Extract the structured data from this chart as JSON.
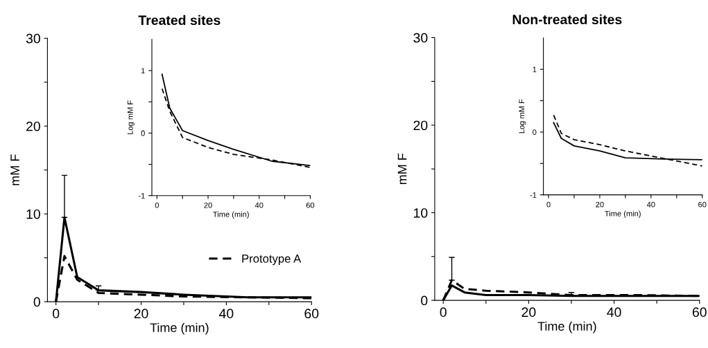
{
  "chart_data": [
    {
      "type": "line",
      "title": "Treated sites",
      "xlabel": "Time (min)",
      "ylabel": "mM F",
      "x": [
        0,
        2,
        5,
        10,
        20,
        30,
        45,
        60
      ],
      "xlim": [
        -2,
        60
      ],
      "xticks": [
        0,
        {
          "value": 10,
          "label": null
        },
        20,
        {
          "value": 30,
          "label": null
        },
        40,
        {
          "value": 50,
          "label": null
        },
        60
      ],
      "ylim": [
        0,
        30
      ],
      "yticks": [
        0,
        {
          "value": 5,
          "label": null
        },
        10,
        {
          "value": 15,
          "label": null
        },
        20,
        {
          "value": 25,
          "label": null
        },
        30
      ],
      "legend": "bottom right",
      "grid": false,
      "marker": "none",
      "series": [
        {
          "color": "#000000",
          "line_style": "solid",
          "values": [
            0,
            9.6,
            2.8,
            1.3,
            1.1,
            0.8,
            0.5,
            0.5
          ],
          "errors": [
            null,
            [
              9.6,
              14.4
            ],
            null,
            [
              1.3,
              1.8
            ],
            null,
            null,
            null,
            null
          ]
        },
        {
          "name": "Prototype A",
          "color": "#000000",
          "line_style": "dashed",
          "values": [
            0,
            5.2,
            2.5,
            1.0,
            0.8,
            0.6,
            0.5,
            0.4
          ]
        }
      ]
    },
    {
      "type": "line",
      "xlabel": "Time (min)",
      "ylabel": "Log mM F",
      "x": [
        2,
        5,
        10,
        20,
        30,
        45,
        60
      ],
      "xlim": [
        -2,
        60
      ],
      "xticks": [
        0,
        {
          "value": 10,
          "label": null
        },
        20,
        {
          "value": 30,
          "label": null
        },
        40,
        {
          "value": 50,
          "label": null
        },
        60
      ],
      "ylim": [
        -1,
        1.5
      ],
      "yticks": [
        -1,
        {
          "value": -0.5,
          "label": null
        },
        0,
        {
          "value": 0.5,
          "label": null
        },
        1
      ],
      "grid": false,
      "marker": "none",
      "series": [
        {
          "color": "#000000",
          "line_style": "solid",
          "values": [
            0.94,
            0.4,
            0.04,
            -0.12,
            -0.26,
            -0.45,
            -0.52
          ]
        },
        {
          "color": "#000000",
          "line_style": "dashed",
          "values": [
            0.71,
            0.35,
            -0.07,
            -0.23,
            -0.34,
            -0.43,
            -0.55
          ]
        }
      ]
    },
    {
      "type": "line",
      "title": "Non-treated sites",
      "xlabel": "Time (min)",
      "ylabel": "mM F",
      "x": [
        0,
        2,
        5,
        10,
        20,
        30,
        45,
        60
      ],
      "xlim": [
        -2,
        60
      ],
      "xticks": [
        0,
        {
          "value": 10,
          "label": null
        },
        20,
        {
          "value": 30,
          "label": null
        },
        40,
        {
          "value": 50,
          "label": null
        },
        60
      ],
      "ylim": [
        0,
        30
      ],
      "yticks": [
        0,
        {
          "value": 5,
          "label": null
        },
        10,
        {
          "value": 15,
          "label": null
        },
        20,
        {
          "value": 25,
          "label": null
        },
        30
      ],
      "grid": false,
      "marker": "none",
      "series": [
        {
          "color": "#000000",
          "line_style": "solid",
          "values": [
            0,
            1.7,
            0.9,
            0.6,
            0.6,
            0.5,
            0.5,
            0.5
          ]
        },
        {
          "color": "#000000",
          "line_style": "dashed",
          "values": [
            0,
            2.3,
            1.3,
            1.1,
            0.9,
            0.6,
            0.6,
            0.5
          ],
          "errors": [
            null,
            [
              2.3,
              4.9
            ],
            null,
            null,
            null,
            [
              0.6,
              0.9
            ],
            null,
            null
          ]
        }
      ]
    },
    {
      "type": "line",
      "xlabel": "Time (min)",
      "ylabel": "Log mM F",
      "x": [
        2,
        5,
        10,
        20,
        30,
        45,
        60
      ],
      "xlim": [
        -2,
        60
      ],
      "xticks": [
        0,
        {
          "value": 10,
          "label": null
        },
        20,
        {
          "value": 30,
          "label": null
        },
        40,
        {
          "value": 50,
          "label": null
        },
        60
      ],
      "ylim": [
        -1,
        1.5
      ],
      "yticks": [
        -1,
        {
          "value": -0.5,
          "label": null
        },
        0,
        {
          "value": 0.5,
          "label": null
        },
        1
      ],
      "grid": false,
      "marker": "none",
      "series": [
        {
          "color": "#000000",
          "line_style": "solid",
          "values": [
            0.15,
            -0.1,
            -0.22,
            -0.3,
            -0.41,
            -0.43,
            -0.44
          ]
        },
        {
          "color": "#000000",
          "line_style": "dashed",
          "values": [
            0.27,
            -0.02,
            -0.12,
            -0.2,
            -0.3,
            -0.42,
            -0.54
          ]
        }
      ]
    }
  ]
}
